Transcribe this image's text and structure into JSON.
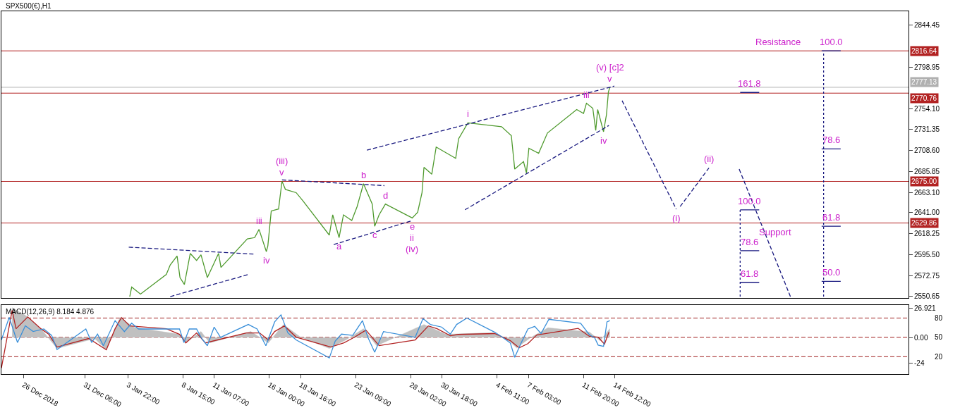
{
  "chart_data": [
    {
      "type": "line",
      "title": "SPX500(€),H1",
      "grid": false,
      "marker": "none",
      "line_style": "solid",
      "tick_labels": "y",
      "xlim": [
        "2018-12-24T03:00",
        "2019-03-11T14:00"
      ],
      "ylim": [
        2548.6,
        2859.6
      ],
      "yticks": [
        2844.45,
        2798.95,
        {
          "value": 2754.1,
          "label": "2754.10"
        },
        2731.35,
        {
          "value": 2708.6,
          "label": "2708.60"
        },
        2685.85,
        {
          "value": 2663.1,
          "label": "2663.10"
        },
        {
          "value": 2641,
          "label": "2641.00"
        },
        2618.25,
        {
          "value": 2595.5,
          "label": "2595.50"
        },
        2572.75,
        2550.65
      ],
      "ref_lines": [
        {
          "axis": "y",
          "value": 2816.64,
          "label": "2816.64",
          "color": "#b22222"
        },
        {
          "axis": "y",
          "value": 2777.13,
          "label": "2777.13",
          "color": "#b0b0b0"
        },
        {
          "axis": "y",
          "value": 2770.76,
          "label": "2770.76",
          "color": "#b22222"
        },
        {
          "axis": "y",
          "value": 2675,
          "label": "2675.00",
          "color": "#b22222"
        },
        {
          "axis": "y",
          "value": 2629.86,
          "label": "2629.86",
          "color": "#b22222"
        }
      ],
      "series": [
        {
          "color": "#4f9a2e",
          "x": [
            "2019-01-04T02:00",
            "2019-01-04T06:00",
            "2019-01-05T00:00",
            "2019-01-07T05:00",
            "2019-01-07T13:00",
            "2019-01-08T03:00",
            "2019-01-08T09:00",
            "2019-01-08T18:00",
            "2019-01-09T06:00",
            "2019-01-09T19:00",
            "2019-01-10T04:00",
            "2019-01-10T17:00",
            "2019-01-11T07:00",
            "2019-01-11T16:00",
            "2019-01-11T21:00",
            "2019-01-14T03:00",
            "2019-01-14T18:00",
            "2019-01-15T03:00",
            "2019-01-15T18:00",
            "2019-01-15T21:00",
            "2019-01-16T04:00",
            "2019-01-16T19:00",
            "2019-01-17T02:00",
            "2019-01-17T09:00",
            "2019-01-18T07:00",
            "2019-01-18T21:00",
            "2019-01-21T03:00",
            "2019-01-21T10:00",
            "2019-01-21T23:00",
            "2019-01-22T08:00",
            "2019-01-23T01:00",
            "2019-01-23T12:00",
            "2019-01-24T01:00",
            "2019-01-24T19:00",
            "2019-01-25T00:00",
            "2019-01-25T09:00",
            "2019-01-25T22:00",
            "2019-01-28T05:00",
            "2019-01-28T16:00",
            "2019-01-29T01:00",
            "2019-01-29T05:00",
            "2019-01-29T21:00",
            "2019-01-30T06:00",
            "2019-01-31T02:00",
            "2019-01-31T22:00",
            "2019-02-01T04:00",
            "2019-02-01T23:00",
            "2019-02-04T20:00",
            "2019-02-05T16:00",
            "2019-02-05T23:00",
            "2019-02-06T17:00",
            "2019-02-06T23:00",
            "2019-02-07T04:00",
            "2019-02-08T00:00",
            "2019-02-08T18:00",
            "2019-02-11T06:00",
            "2019-02-11T20:00",
            "2019-02-12T02:00",
            "2019-02-12T15:00",
            "2019-02-12T21:00",
            "2019-02-13T01:00",
            "2019-02-13T13:00",
            "2019-02-13T19:00",
            "2019-02-13T23:00",
            "2019-02-14T02:00"
          ],
          "values": [
            2550,
            2560.3,
            2552.7,
            2574.1,
            2584.4,
            2594,
            2570.6,
            2563.1,
            2596.8,
            2589.2,
            2595.4,
            2570.6,
            2586.5,
            2596.8,
            2581.6,
            2612.6,
            2614,
            2622.9,
            2598.8,
            2605,
            2642.9,
            2645,
            2675.2,
            2666.3,
            2662.8,
            2653.9,
            2616.7,
            2638.7,
            2614,
            2638.7,
            2632.5,
            2647.7,
            2672.5,
            2650.4,
            2626.3,
            2638.7,
            2650.4,
            2635.3,
            2641.5,
            2662.8,
            2690.3,
            2682.8,
            2712.3,
            2706.1,
            2700,
            2721.3,
            2738.5,
            2734.4,
            2724.7,
            2688.3,
            2696.5,
            2684.1,
            2711,
            2705.5,
            2727.5,
            2753,
            2748.8,
            2759.8,
            2754.3,
            2730.2,
            2753,
            2728.9,
            2747.4,
            2772.2,
            2777
          ]
        },
        {
          "color": "#1a1a80",
          "line_style": "dashed",
          "x": [
            "2019-01-04T00:00",
            "2019-01-14T18:00"
          ],
          "values": [
            2603.6,
            2596.1
          ]
        },
        {
          "color": "#1a1a80",
          "line_style": "dashed",
          "x": [
            "2019-01-07T13:00",
            "2019-01-14T06:00"
          ],
          "values": [
            2550,
            2574.1
          ]
        },
        {
          "color": "#1a1a80",
          "line_style": "dashed",
          "x": [
            "2019-01-17T02:00",
            "2019-01-25T20:00"
          ],
          "values": [
            2676.6,
            2670.4
          ]
        },
        {
          "color": "#1a1a80",
          "line_style": "dashed",
          "x": [
            "2019-01-21T12:00",
            "2019-01-28T05:00"
          ],
          "values": [
            2606.4,
            2632.5
          ]
        },
        {
          "color": "#1a1a80",
          "line_style": "dashed",
          "x": [
            "2019-01-24T08:00",
            "2019-02-14T11:00"
          ],
          "values": [
            2708.9,
            2778.4
          ]
        },
        {
          "color": "#1a1a80",
          "line_style": "dashed",
          "x": [
            "2019-02-01T17:00",
            "2019-02-14T00:00"
          ],
          "values": [
            2644.2,
            2735.7
          ]
        },
        {
          "color": "#1a1a80",
          "line_style": "dashed",
          "x": [
            "2019-02-15T03:00",
            "2019-02-19T18:00",
            "2019-02-19T22:00",
            "2019-02-20T02:00",
            "2019-02-22T13:00",
            "2019-02-22T20:00",
            "2019-02-25T03:00",
            "2019-03-01T12:00"
          ],
          "values": [
            2762.6,
            2644.9,
            null,
            2647.7,
            2689.6,
            null,
            2688.3,
            2550
          ]
        },
        {
          "color": "#1a1a80",
          "x": [
            "2019-02-25T05:00",
            "2019-02-26T00:00",
            "2019-02-26T20:00"
          ],
          "values": [
            2771.5,
            2771.5,
            2771.5
          ]
        },
        {
          "color": "#1a1a80",
          "line_style": "dotted",
          "x": [
            "2019-02-25T05:00",
            "2019-02-25T05:00"
          ],
          "values": [
            2550,
            2644.2
          ]
        },
        {
          "color": "#1a1a80",
          "x": [
            "2019-02-25T05:00",
            "2019-02-26T00:00",
            "2019-02-26T20:00"
          ],
          "values": [
            2644.2,
            2644.2,
            2644.2
          ]
        },
        {
          "color": "#1a1a80",
          "x": [
            "2019-02-25T05:00",
            "2019-02-26T00:00",
            "2019-02-26T20:00"
          ],
          "values": [
            2599.8,
            2599.8,
            2599.8
          ]
        },
        {
          "color": "#1a1a80",
          "x": [
            "2019-02-25T05:00",
            "2019-02-26T00:00",
            "2019-02-26T20:00"
          ],
          "values": [
            2565.3,
            2565.3,
            2565.3
          ]
        },
        {
          "color": "#1a1a80",
          "line_style": "dotted",
          "x": [
            "2019-03-04T08:00",
            "2019-03-04T08:00"
          ],
          "values": [
            2550,
            2816.64
          ]
        },
        {
          "color": "#1a1a80",
          "x": [
            "2019-03-04T04:00",
            "2019-03-05T00:00",
            "2019-03-05T19:00"
          ],
          "values": [
            2816.64,
            2816.64,
            2816.64
          ]
        },
        {
          "color": "#1a1a80",
          "x": [
            "2019-03-04T04:00",
            "2019-03-05T00:00",
            "2019-03-05T19:00"
          ],
          "values": [
            2710.3,
            2710.3,
            2710.3
          ]
        },
        {
          "color": "#1a1a80",
          "x": [
            "2019-03-04T04:00",
            "2019-03-05T00:00",
            "2019-03-05T19:00"
          ],
          "values": [
            2626.3,
            2626.3,
            2626.3
          ]
        },
        {
          "color": "#1a1a80",
          "x": [
            "2019-03-04T04:00",
            "2019-03-05T00:00",
            "2019-03-05T19:00"
          ],
          "values": [
            2566.5,
            2566.5,
            2566.5
          ]
        }
      ],
      "annotations": [
        {
          "text": "v",
          "x": "2019-01-17T02:00",
          "y": 2675.2
        },
        {
          "text": "(iii)",
          "x": "2019-01-17T02:00",
          "y": 2675.2
        },
        {
          "text": "iii",
          "x": "2019-01-15T03:00",
          "y": 2622.9
        },
        {
          "text": "iv",
          "x": "2019-01-15T18:00",
          "y": 2598.8
        },
        {
          "text": "a",
          "x": "2019-01-21T23:00",
          "y": 2614
        },
        {
          "text": "b",
          "x": "2019-01-24T01:00",
          "y": 2672.5
        },
        {
          "text": "c",
          "x": "2019-01-25T00:00",
          "y": 2626.3
        },
        {
          "text": "d",
          "x": "2019-01-25T22:00",
          "y": 2650.4
        },
        {
          "text": "e",
          "x": "2019-01-28T05:00",
          "y": 2635.3
        },
        {
          "text": "ii",
          "x": "2019-01-28T05:00",
          "y": 2635.3
        },
        {
          "text": "(iv)",
          "x": "2019-01-28T05:00",
          "y": 2635.3
        },
        {
          "text": "i",
          "x": "2019-02-01T23:00",
          "y": 2738.5
        },
        {
          "text": "iii",
          "x": "2019-02-12T02:00",
          "y": 2759.8
        },
        {
          "text": "iv",
          "x": "2019-02-13T13:00",
          "y": 2728.9
        },
        {
          "text": "v",
          "x": "2019-02-14T02:00",
          "y": 2777
        },
        {
          "text": "(v) [c]2",
          "x": "2019-02-14T02:00",
          "y": 2777
        },
        {
          "text": "(i)",
          "x": "2019-02-19T18:00",
          "y": 2644.9
        },
        {
          "text": "(ii)",
          "x": "2019-02-22T13:00",
          "y": 2689.6
        },
        {
          "text": "Resistance",
          "x": "2019-02-28T11:00",
          "y": 2816.64
        },
        {
          "text": "Support",
          "x": "2019-02-28T05:00",
          "y": 2629.86
        },
        {
          "text": "161.8",
          "x": "2019-02-26T00:00",
          "y": 2771.5
        },
        {
          "text": "100.0",
          "x": "2019-02-26T00:00",
          "y": 2644.2
        },
        {
          "text": "78.6",
          "x": "2019-02-26T00:00",
          "y": 2599.8
        },
        {
          "text": "61.8",
          "x": "2019-02-26T00:00",
          "y": 2565.3
        },
        {
          "text": "100.0",
          "x": "2019-03-05T00:00",
          "y": 2816.64
        },
        {
          "text": "78.6",
          "x": "2019-03-05T00:00",
          "y": 2710.3
        },
        {
          "text": "61.8",
          "x": "2019-03-05T00:00",
          "y": 2626.3
        },
        {
          "text": "50.0",
          "x": "2019-03-05T00:00",
          "y": 2566.5
        }
      ]
    },
    {
      "type": "line",
      "grid": false,
      "marker": "none",
      "line_style": "solid",
      "xlim": [
        "2018-12-24T03:00",
        "2019-03-11T14:00"
      ],
      "xticks": [
        {
          "value": "2018-12-26T00:00",
          "label": "26 Dec 2018"
        },
        {
          "value": "2018-12-31T06:00",
          "label": "31 Dec 06:00"
        },
        {
          "value": "2019-01-03T22:00",
          "label": "3 Jan 22:00"
        },
        {
          "value": "2019-01-08T15:00",
          "label": "8 Jan 15:00"
        },
        {
          "value": "2019-01-11T07:00",
          "label": "11 Jan 07:00"
        },
        {
          "value": "2019-01-16T00:00",
          "label": "16 Jan 00:00"
        },
        {
          "value": "2019-01-18T16:00",
          "label": "18 Jan 16:00"
        },
        {
          "value": "2019-01-23T09:00",
          "label": "23 Jan 09:00"
        },
        {
          "value": "2019-01-28T02:00",
          "label": "28 Jan 02:00"
        },
        {
          "value": "2019-01-30T18:00",
          "label": "30 Jan 18:00"
        },
        {
          "value": "2019-02-04T11:00",
          "label": "4 Feb 11:00"
        },
        {
          "value": "2019-02-07T03:00",
          "label": "7 Feb 03:00"
        },
        {
          "value": "2019-02-11T20:00",
          "label": "11 Feb 20:00"
        },
        {
          "value": "2019-02-14T12:00",
          "label": "14 Feb 12:00"
        }
      ],
      "ylim": [
        -34,
        30
      ],
      "yticks": [
        26.921,
        {
          "value": 0,
          "label": "0.00"
        },
        -24
      ],
      "y2lim": [
        -7,
        100
      ],
      "y2ticks": [
        80,
        50,
        20
      ],
      "ref_lines": [
        {
          "axis": "y2",
          "value": 80,
          "color": "#a02020",
          "line_style": "dashed"
        },
        {
          "axis": "y2",
          "value": 50,
          "color": "#a02020",
          "line_style": "dashed"
        },
        {
          "axis": "y2",
          "value": 20,
          "color": "#a02020",
          "line_style": "dashed"
        }
      ],
      "annotations": [
        "MACD(12,26,9) 8.184 4.876"
      ],
      "series": [
        {
          "type": "area",
          "color": "#c0c0c0",
          "x": [
            "2018-12-25T01:00",
            "2018-12-26T09:00",
            "2018-12-27T12:00",
            "2018-12-28T21:00",
            "2019-01-01T02:00",
            "2019-01-02T02:00",
            "2019-01-03T06:00",
            "2019-01-04T11:00",
            "2019-01-08T08:00",
            "2019-01-08T21:00",
            "2019-01-10T04:00",
            "2019-01-10T22:00",
            "2019-01-14T10:00",
            "2019-01-15T22:00",
            "2019-01-17T05:00",
            "2019-01-18T16:00",
            "2019-01-21T03:00",
            "2019-01-22T13:00",
            "2019-01-24T01:00",
            "2019-01-25T04:00",
            "2019-01-29T05:00",
            "2019-01-31T02:00",
            "2019-02-04T02:00",
            "2019-02-05T14:00",
            "2019-02-06T03:00",
            "2019-02-07T07:00",
            "2019-02-08T19:00",
            "2019-02-12T08:00",
            "2019-02-13T06:00",
            "2019-02-14T02:00"
          ],
          "values": [
            27.7,
            19.1,
            8.1,
            -10.2,
            -1,
            -11.5,
            18.5,
            9.4,
            2.9,
            -5,
            5.5,
            -5,
            5.5,
            -5,
            12,
            0.3,
            -10.2,
            -2.3,
            8.1,
            -7.6,
            12,
            2.9,
            4.4,
            -4.3,
            -9.7,
            -0.3,
            9,
            5,
            -3,
            8.2
          ]
        },
        {
          "color": "#b22222",
          "x": [
            "2018-12-24T03:00",
            "2018-12-25T01:00",
            "2018-12-25T09:00",
            "2018-12-26T09:00",
            "2018-12-27T12:00",
            "2018-12-28T04:00",
            "2018-12-28T21:00",
            "2018-12-31T14:00",
            "2019-01-02T02:00",
            "2019-01-02T20:00",
            "2019-01-03T09:00",
            "2019-01-04T02:00",
            "2019-01-07T05:00",
            "2019-01-08T08:00",
            "2019-01-08T21:00",
            "2019-01-09T19:00",
            "2019-01-10T13:00",
            "2019-01-14T01:00",
            "2019-01-15T04:00",
            "2019-01-15T22:00",
            "2019-01-16T11:00",
            "2019-01-17T07:00",
            "2019-01-18T07:00",
            "2019-01-21T06:00",
            "2019-01-22T09:00",
            "2019-01-23T07:00",
            "2019-01-24T06:00",
            "2019-01-25T09:00",
            "2019-01-28T11:00",
            "2019-01-29T14:00",
            "2019-01-30T08:00",
            "2019-01-31T11:00",
            "2019-02-01T03:00",
            "2019-02-04T06:00",
            "2019-02-05T14:00",
            "2019-02-06T08:00",
            "2019-02-07T02:00",
            "2019-02-07T20:00",
            "2019-02-11T09:00",
            "2019-02-12T08:00",
            "2019-02-13T02:00",
            "2019-02-13T15:00",
            "2019-02-14T00:00"
          ],
          "values": [
            -28.4,
            25.1,
            8.1,
            19.1,
            8.1,
            2.9,
            -8.9,
            -1,
            -11.5,
            8.1,
            18.5,
            10.7,
            8.1,
            2.9,
            -5,
            4.2,
            -5,
            4.2,
            4.2,
            -2.3,
            5.5,
            10.7,
            0.3,
            -8.9,
            -5,
            0.3,
            6.8,
            -7.6,
            -2.3,
            10.7,
            8.1,
            1.6,
            2.8,
            3.6,
            -3,
            -9.7,
            -5.7,
            2.3,
            8.4,
            1,
            0.2,
            -6.2,
            4.9
          ]
        },
        {
          "color": "#3a8fd9",
          "axis": "y2",
          "x": [
            "2018-12-24T03:00",
            "2018-12-24T19:00",
            "2018-12-25T12:00",
            "2018-12-26T04:00",
            "2018-12-26T20:00",
            "2018-12-27T18:00",
            "2018-12-28T10:00",
            "2018-12-28T21:00",
            "2018-12-31T08:00",
            "2018-12-31T20:00",
            "2019-01-01T08:00",
            "2019-01-01T20:00",
            "2019-01-02T20:00",
            "2019-01-03T15:00",
            "2019-01-04T06:00",
            "2019-01-04T20:00",
            "2019-01-07T09:00",
            "2019-01-08T08:00",
            "2019-01-08T17:00",
            "2019-01-09T04:00",
            "2019-01-09T19:00",
            "2019-01-10T04:00",
            "2019-01-10T17:00",
            "2019-01-11T07:00",
            "2019-01-11T20:00",
            "2019-01-14T05:00",
            "2019-01-14T23:00",
            "2019-01-15T17:00",
            "2019-01-16T11:00",
            "2019-01-17T00:00",
            "2019-01-17T14:00",
            "2019-01-18T07:00",
            "2019-01-21T03:00",
            "2019-01-21T15:00",
            "2019-01-22T04:00",
            "2019-01-23T03:00",
            "2019-01-23T23:00",
            "2019-01-24T10:00",
            "2019-01-25T00:00",
            "2019-01-25T18:00",
            "2019-01-28T11:00",
            "2019-01-29T03:00",
            "2019-01-29T18:00",
            "2019-01-30T17:00",
            "2019-01-31T11:00",
            "2019-02-01T00:00",
            "2019-02-01T21:00",
            "2019-02-04T06:00",
            "2019-02-05T00:00",
            "2019-02-05T14:00",
            "2019-02-05T23:00",
            "2019-02-06T12:00",
            "2019-02-07T02:00",
            "2019-02-07T16:00",
            "2019-02-08T05:00",
            "2019-02-08T21:00",
            "2019-02-11T14:00",
            "2019-02-12T08:00",
            "2019-02-12T19:00",
            "2019-02-13T02:00",
            "2019-02-13T13:00",
            "2019-02-13T20:00",
            "2019-02-14T02:00"
          ],
          "values": [
            46,
            81,
            42,
            68,
            59,
            63,
            53,
            31,
            63,
            42,
            55,
            37,
            76,
            59,
            72,
            63,
            63,
            63,
            42,
            63,
            63,
            50,
            37,
            66,
            50,
            70,
            63,
            37,
            74,
            85,
            57,
            46,
            18,
            44,
            55,
            53,
            76,
            50,
            27,
            59,
            50,
            79,
            70,
            66,
            55,
            70,
            80,
            58,
            49,
            41,
            19,
            41,
            63,
            67,
            56,
            78,
            72,
            54,
            49,
            38,
            36,
            74,
            76
          ]
        }
      ]
    }
  ]
}
